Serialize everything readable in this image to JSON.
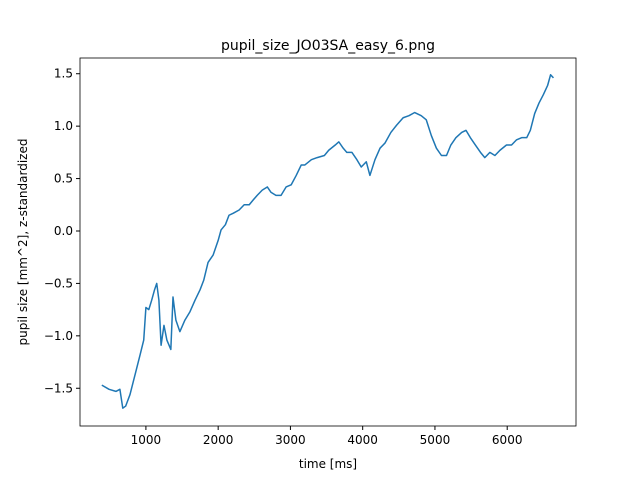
{
  "chart_data": {
    "type": "line",
    "title": "pupil_size_JO03SA_easy_6.png",
    "x_label": "time [ms]",
    "y_label": "pupil size [mm^2], z-standardized",
    "xlim": [
      88,
      6952
    ],
    "ylim": [
      -1.86,
      1.65
    ],
    "xticks": [
      1000,
      2000,
      3000,
      4000,
      5000,
      6000
    ],
    "yticks": [
      {
        "value": -1.5,
        "label": "−1.5"
      },
      {
        "value": -1.0,
        "label": "−1.0"
      },
      {
        "value": -0.5,
        "label": "−0.5"
      },
      {
        "value": 0.0,
        "label": "0.0"
      },
      {
        "value": 0.5,
        "label": "0.5"
      },
      {
        "value": 1.0,
        "label": "1.0"
      },
      {
        "value": 1.5,
        "label": "1.5"
      }
    ],
    "grid": false,
    "series": [
      {
        "color": "#1f77b4",
        "x": [
          390,
          490,
          585,
          640,
          680,
          720,
          780,
          850,
          920,
          970,
          1000,
          1040,
          1080,
          1120,
          1150,
          1180,
          1210,
          1250,
          1290,
          1345,
          1375,
          1415,
          1470,
          1540,
          1610,
          1680,
          1750,
          1800,
          1860,
          1930,
          2000,
          2040,
          2100,
          2150,
          2210,
          2290,
          2360,
          2430,
          2490,
          2540,
          2610,
          2680,
          2730,
          2800,
          2870,
          2940,
          3010,
          3080,
          3150,
          3200,
          3290,
          3370,
          3470,
          3530,
          3620,
          3670,
          3730,
          3780,
          3850,
          3920,
          3980,
          4050,
          4100,
          4170,
          4240,
          4310,
          4390,
          4470,
          4560,
          4640,
          4720,
          4810,
          4880,
          4950,
          5020,
          5090,
          5160,
          5220,
          5290,
          5370,
          5430,
          5490,
          5560,
          5630,
          5690,
          5760,
          5830,
          5900,
          5990,
          6060,
          6130,
          6200,
          6270,
          6320,
          6380,
          6440,
          6500,
          6560,
          6600,
          6640
        ],
        "values": [
          -1.47,
          -1.51,
          -1.53,
          -1.51,
          -1.69,
          -1.67,
          -1.56,
          -1.37,
          -1.18,
          -1.04,
          -0.73,
          -0.75,
          -0.66,
          -0.56,
          -0.5,
          -0.66,
          -1.09,
          -0.9,
          -1.04,
          -1.13,
          -0.63,
          -0.85,
          -0.96,
          -0.85,
          -0.77,
          -0.66,
          -0.56,
          -0.47,
          -0.3,
          -0.23,
          -0.09,
          0.01,
          0.06,
          0.15,
          0.17,
          0.2,
          0.25,
          0.25,
          0.3,
          0.34,
          0.39,
          0.42,
          0.37,
          0.34,
          0.34,
          0.42,
          0.44,
          0.53,
          0.63,
          0.63,
          0.68,
          0.7,
          0.72,
          0.77,
          0.82,
          0.85,
          0.79,
          0.75,
          0.75,
          0.68,
          0.61,
          0.66,
          0.53,
          0.68,
          0.79,
          0.84,
          0.94,
          1.01,
          1.08,
          1.1,
          1.13,
          1.1,
          1.06,
          0.91,
          0.79,
          0.72,
          0.72,
          0.82,
          0.89,
          0.94,
          0.96,
          0.89,
          0.82,
          0.75,
          0.7,
          0.75,
          0.72,
          0.77,
          0.82,
          0.82,
          0.87,
          0.89,
          0.89,
          0.96,
          1.12,
          1.22,
          1.3,
          1.39,
          1.49,
          1.46
        ]
      }
    ]
  }
}
